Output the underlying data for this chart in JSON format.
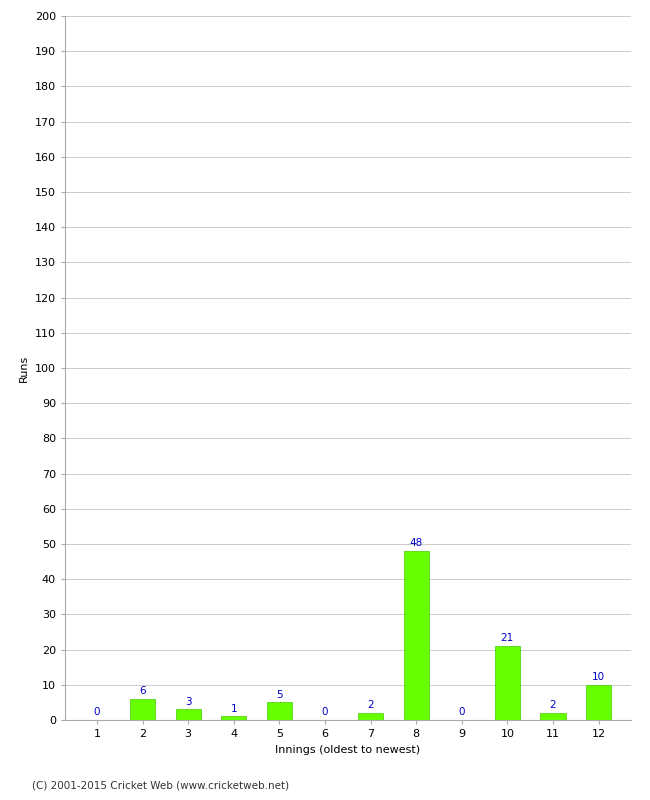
{
  "xlabel": "Innings (oldest to newest)",
  "ylabel": "Runs",
  "categories": [
    1,
    2,
    3,
    4,
    5,
    6,
    7,
    8,
    9,
    10,
    11,
    12
  ],
  "values": [
    0,
    6,
    3,
    1,
    5,
    0,
    2,
    48,
    0,
    21,
    2,
    10
  ],
  "bar_color": "#66ff00",
  "bar_edge_color": "#44cc00",
  "label_color": "#0000cc",
  "ylim": [
    0,
    200
  ],
  "ytick_step": 10,
  "background_color": "#ffffff",
  "grid_color": "#cccccc",
  "footer": "(C) 2001-2015 Cricket Web (www.cricketweb.net)",
  "label_fontsize": 7.5,
  "axis_tick_fontsize": 8,
  "axis_label_fontsize": 8,
  "footer_fontsize": 7.5,
  "bar_width": 0.55
}
